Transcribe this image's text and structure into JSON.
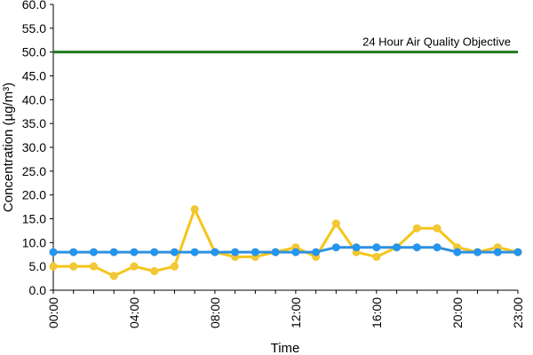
{
  "chart_data": {
    "type": "line",
    "xlabel": "Time",
    "ylabel": "Concentration (µg/m³)",
    "ylim": [
      0,
      60
    ],
    "yticks": [
      "0.0",
      "5.0",
      "10.0",
      "15.0",
      "20.0",
      "25.0",
      "30.0",
      "35.0",
      "40.0",
      "45.0",
      "50.0",
      "55.0",
      "60.0"
    ],
    "xticks": [
      "00:00",
      "04:00",
      "08:00",
      "12:00",
      "16:00",
      "20:00",
      "23:00"
    ],
    "x": [
      0,
      1,
      2,
      3,
      4,
      5,
      6,
      7,
      8,
      9,
      10,
      11,
      12,
      13,
      14,
      15,
      16,
      17,
      18,
      19,
      20,
      21,
      22,
      23
    ],
    "grid": false,
    "series": [
      {
        "color": "#f5c518",
        "marker_color": "#f0c83c",
        "values": [
          5,
          5,
          5,
          3,
          5,
          4,
          5,
          17,
          8,
          7,
          7,
          8,
          9,
          7,
          14,
          8,
          7,
          9,
          13,
          13,
          9,
          8,
          9,
          8
        ]
      },
      {
        "color": "#2e90e0",
        "marker_color": "#2196f3",
        "values": [
          8,
          8,
          8,
          8,
          8,
          8,
          8,
          8,
          8,
          8,
          8,
          8,
          8,
          8,
          9,
          9,
          9,
          9,
          9,
          9,
          8,
          8,
          8,
          8
        ]
      }
    ],
    "reference_line": {
      "value": 50,
      "label": "24 Hour Air Quality Objective",
      "color": "#1f7a1f"
    }
  }
}
